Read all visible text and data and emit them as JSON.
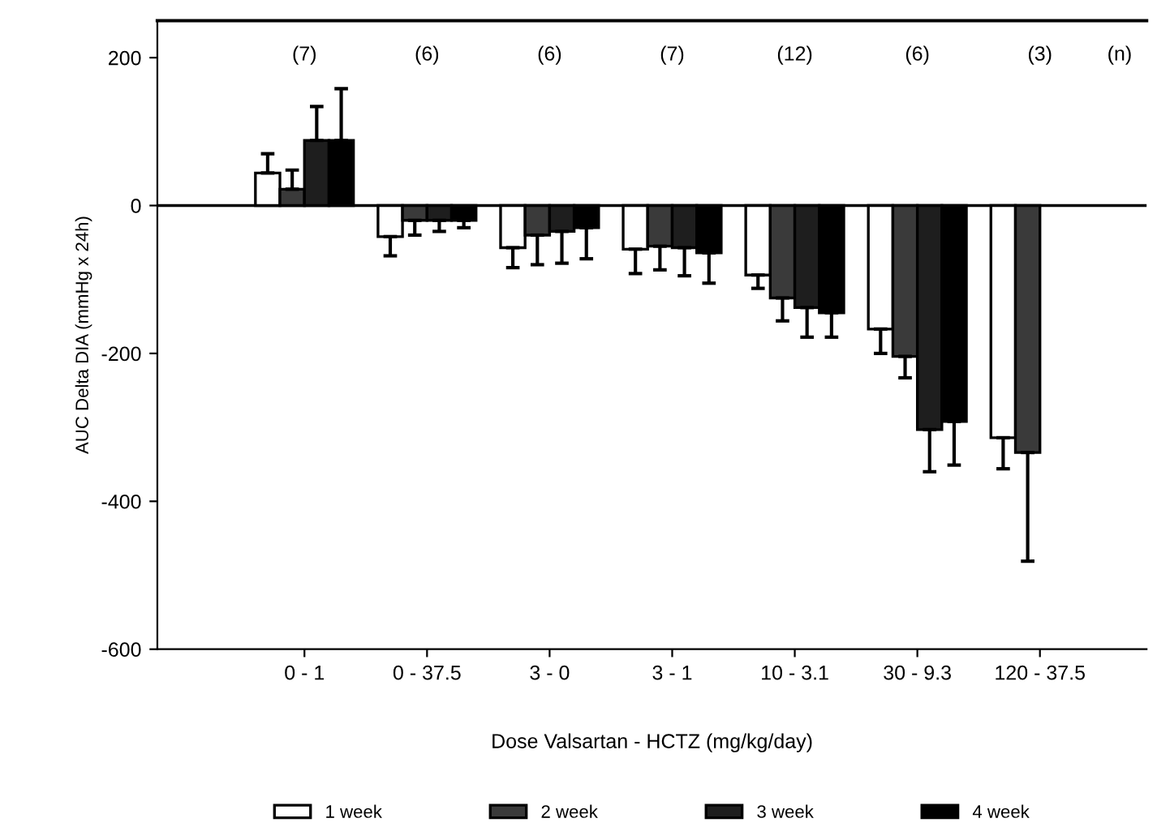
{
  "chart_data": {
    "type": "bar",
    "xlabel": "Dose Valsartan - HCTZ (mg/kg/day)",
    "ylabel": "AUC Delta DIA (mmHg x 24h)",
    "categories": [
      "0 - 1",
      "0 - 37.5",
      "3 - 0",
      "3 - 1",
      "10 - 3.1",
      "30 - 9.3",
      "120 - 37.5"
    ],
    "series": [
      {
        "name": "1 week",
        "color": "#ffffff",
        "values": [
          44,
          -42,
          -57,
          -59,
          -94,
          -167,
          -314
        ],
        "errors": [
          [
            44,
            70
          ],
          [
            -68,
            -42
          ],
          [
            -84,
            -57
          ],
          [
            -92,
            -59
          ],
          [
            -112,
            -94
          ],
          [
            -200,
            -167
          ],
          [
            -356,
            -314
          ]
        ]
      },
      {
        "name": "2 week",
        "color": "#3a3a3a",
        "values": [
          22,
          -20,
          -40,
          -55,
          -125,
          -204,
          -334
        ],
        "errors": [
          [
            22,
            48
          ],
          [
            -40,
            -20
          ],
          [
            -80,
            -40
          ],
          [
            -87,
            -55
          ],
          [
            -156,
            -125
          ],
          [
            -233,
            -204
          ],
          [
            -481,
            -334
          ]
        ]
      },
      {
        "name": "3 week",
        "color": "#1e1e1e",
        "values": [
          88,
          -20,
          -35,
          -57,
          -138,
          -303,
          null
        ],
        "errors": [
          [
            88,
            134
          ],
          [
            -35,
            -20
          ],
          [
            -78,
            -35
          ],
          [
            -95,
            -57
          ],
          [
            -178,
            -138
          ],
          [
            -360,
            -303
          ],
          null
        ]
      },
      {
        "name": "4 week",
        "color": "#000000",
        "values": [
          88,
          -20,
          -30,
          -64,
          -145,
          -292,
          null
        ],
        "errors": [
          [
            88,
            158
          ],
          [
            -30,
            -20
          ],
          [
            -72,
            -30
          ],
          [
            -105,
            -64
          ],
          [
            -178,
            -145
          ],
          [
            -351,
            -292
          ],
          null
        ]
      }
    ],
    "ylim": [
      -600,
      250
    ],
    "yticks": [
      200,
      0,
      -200,
      -400,
      -600
    ],
    "ref_lines": [
      {
        "axis": "y",
        "value": 0,
        "color": "#000000"
      }
    ],
    "annotations": [
      "(7)",
      "(6)",
      "(6)",
      "(7)",
      "(12)",
      "(6)",
      "(3)",
      "(n)"
    ],
    "grid": false,
    "legend": "bottom"
  }
}
